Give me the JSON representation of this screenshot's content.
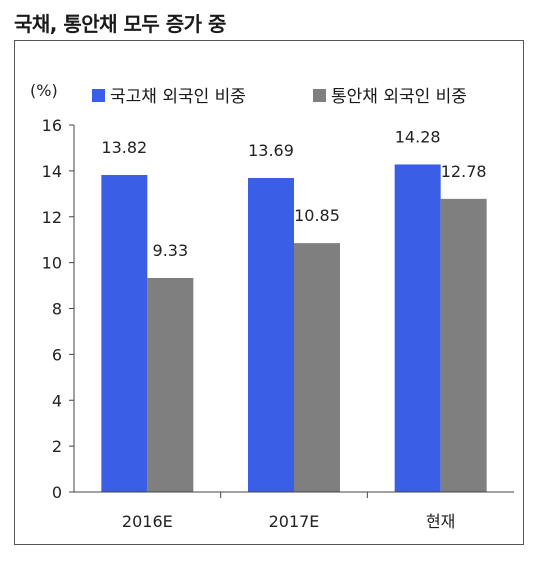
{
  "headline": "국채, 통안채 모두 증가 중",
  "chart_data": {
    "type": "bar",
    "categories": [
      "2016E",
      "2017E",
      "현재"
    ],
    "series": [
      {
        "name": "국고채 외국인 비중",
        "values": [
          13.82,
          13.69,
          14.28
        ],
        "color": "#3a5ee6"
      },
      {
        "name": "통안채 외국인 비중",
        "values": [
          9.33,
          10.85,
          12.78
        ],
        "color": "#7f7f7f"
      }
    ],
    "ylim": [
      0,
      16
    ],
    "yticks": [
      "0",
      "2",
      "4",
      "6",
      "8",
      "10",
      "12",
      "14",
      "16"
    ],
    "unit_label": "(%)",
    "legend": "top",
    "grid": false
  }
}
